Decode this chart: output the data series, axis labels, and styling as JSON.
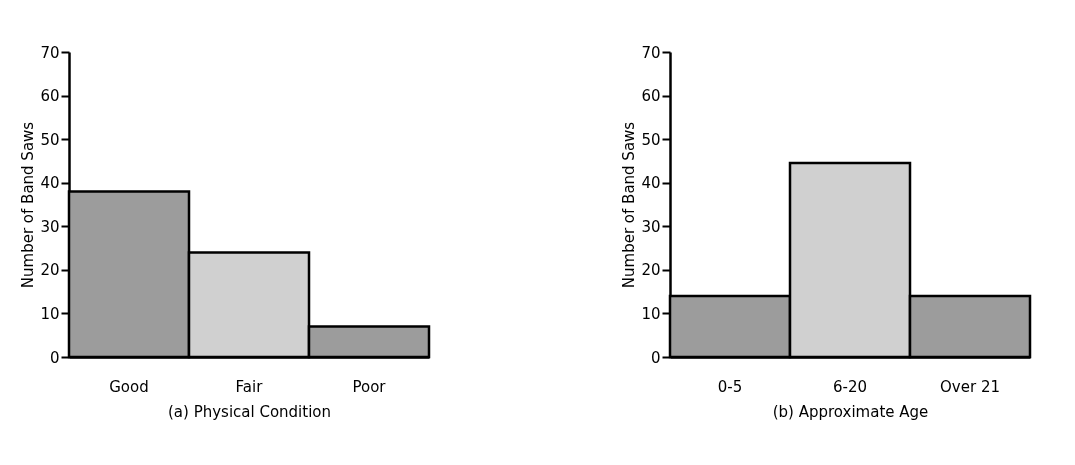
{
  "chart_data": [
    {
      "type": "bar",
      "categories": [
        "Good",
        "Fair",
        "Poor"
      ],
      "values": [
        38,
        24,
        7
      ],
      "colors": [
        "#9c9c9c",
        "#d0d0d0",
        "#9c9c9c"
      ],
      "xlabel": "(a) Physical Condition",
      "ylabel": "Number of Band Saws",
      "ylim": [
        0,
        70
      ],
      "yticks": [
        0,
        10,
        20,
        30,
        40,
        50,
        60,
        70
      ],
      "grid": false
    },
    {
      "type": "bar",
      "categories": [
        "0-5",
        "6-20",
        "Over 21"
      ],
      "values": [
        14,
        44.5,
        14
      ],
      "colors": [
        "#9c9c9c",
        "#d0d0d0",
        "#9c9c9c"
      ],
      "xlabel": "(b) Approximate Age",
      "ylabel": "Number of Band Saws",
      "ylim": [
        0,
        70
      ],
      "yticks": [
        0,
        10,
        20,
        30,
        40,
        50,
        60,
        70
      ],
      "grid": false
    }
  ]
}
